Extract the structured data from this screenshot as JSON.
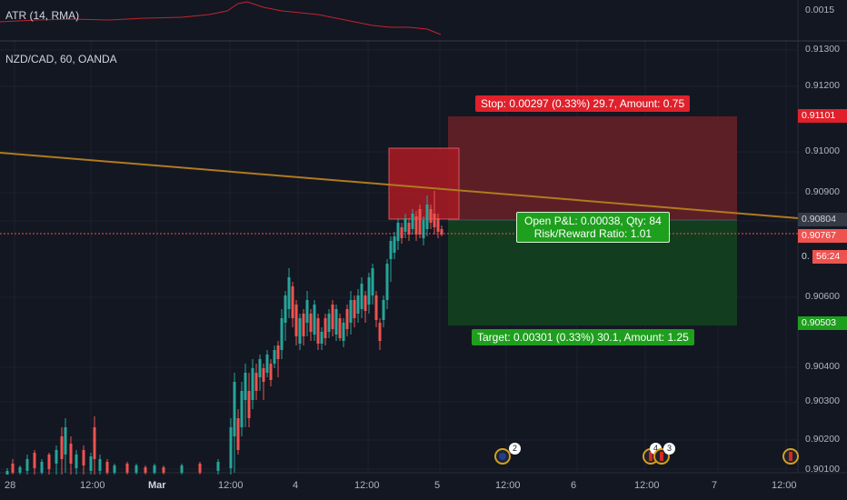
{
  "atr_pane": {
    "label": "ATR (14, RMA)",
    "axis_label": "0.0015"
  },
  "main_pane": {
    "symbol_label": "NZD/CAD, 60, OANDA",
    "y_axis_labels": [
      "0.91300",
      "0.91200",
      "0.91000",
      "0.90900",
      "0.90800",
      "0.90600",
      "0.90400",
      "0.90300",
      "0.90200",
      "0.90100"
    ],
    "x_axis_labels": [
      "28",
      "12:00",
      "Mar",
      "12:00",
      "4",
      "12:00",
      "5",
      "12:00",
      "6",
      "12:00",
      "7",
      "12:00"
    ]
  },
  "price_tags": {
    "stop_price": "0.91101",
    "entry_price": "0.90804",
    "current_price": "0.90767",
    "countdown": "56:24",
    "countdown_prefix": "0.",
    "target_price": "0.90503",
    "last_axis": "0.90100"
  },
  "position": {
    "stop_label": "Stop: 0.00297 (0.33%) 29.7, Amount: 0.75",
    "pnl_line1": "Open P&L: 0.00038, Qty: 84",
    "pnl_line2": "Risk/Reward Ratio: 1.01",
    "target_label": "Target: 0.00301 (0.33%) 30.1, Amount: 1.25"
  },
  "events": [
    {
      "count": "2",
      "flag": "australia"
    },
    {
      "count": "4",
      "flag": "canada"
    },
    {
      "count": "3",
      "flag": "canada"
    },
    {
      "count": "",
      "flag": "canada"
    }
  ],
  "colors": {
    "background": "#131722",
    "bull": "#26a69a",
    "bear": "#ef5350",
    "stop_zone": "#5c1f26",
    "target_zone": "#123d1e",
    "trend_line": "#b07a1e",
    "label_red": "#e0212c",
    "label_green": "#1e9f1e"
  }
}
